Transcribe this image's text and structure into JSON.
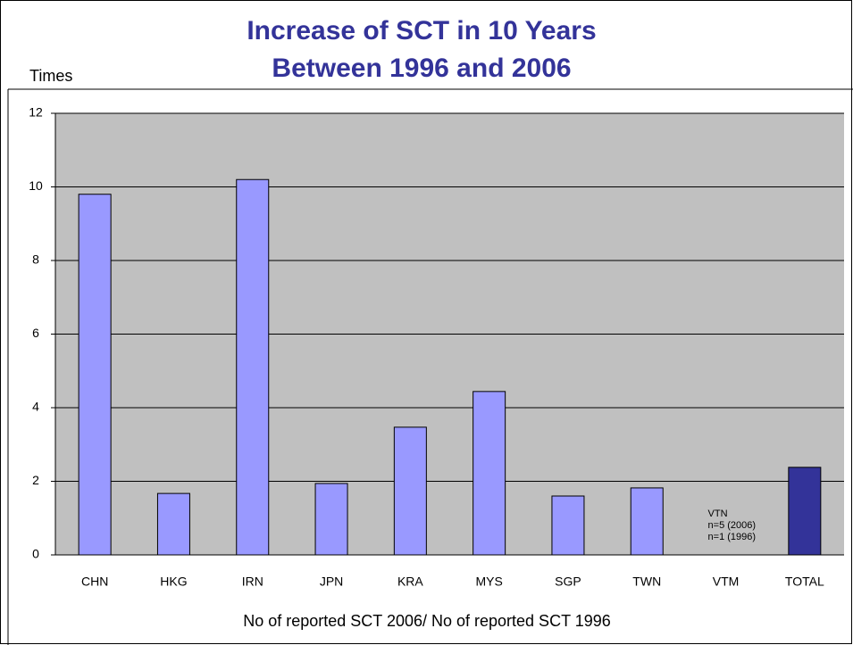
{
  "chart_data": {
    "type": "bar",
    "title": [
      "Increase of SCT in 10 Years",
      "Between 1996 and 2006"
    ],
    "y_label": "Times",
    "x_label": "No of reported SCT 2006/ No of reported SCT 1996",
    "categories": [
      "CHN",
      "HKG",
      "IRN",
      "JPN",
      "KRA",
      "MYS",
      "SGP",
      "TWN",
      "VTM",
      "TOTAL"
    ],
    "values": [
      9.8,
      1.67,
      10.2,
      1.94,
      3.47,
      4.44,
      1.6,
      1.82,
      null,
      2.38
    ],
    "colors": [
      "#9999ff",
      "#9999ff",
      "#9999ff",
      "#9999ff",
      "#9999ff",
      "#9999ff",
      "#9999ff",
      "#9999ff",
      "#9999ff",
      "#333399"
    ],
    "annotation": [
      "VTN",
      "n=5 (2006)",
      "n=1 (1996)"
    ],
    "ylim": [
      0,
      12
    ],
    "yticks": [
      0,
      2,
      4,
      6,
      8,
      10,
      12
    ],
    "grid": true
  }
}
